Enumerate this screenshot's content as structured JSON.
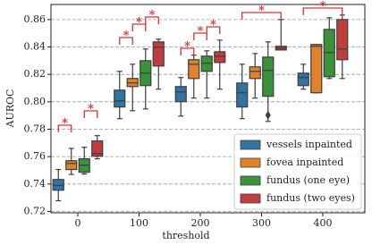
{
  "chart_data": {
    "type": "box",
    "xlabel": "threshold",
    "ylabel": "AUROC",
    "categories": [
      "0",
      "100",
      "200",
      "300",
      "400"
    ],
    "ylim": [
      0.719,
      0.871
    ],
    "yticks": [
      0.72,
      0.74,
      0.76,
      0.78,
      {
        "value": 0.8,
        "label": "0.80"
      },
      0.82,
      0.84,
      0.86
    ],
    "grid": true,
    "legend": "lower right",
    "series": [
      {
        "name": "vessels inpainted",
        "color": "#3274a1",
        "boxes": [
          {
            "low": 0.7278,
            "q1": 0.7355,
            "median": 0.739,
            "q3": 0.7433,
            "high": 0.7506
          },
          {
            "low": 0.7877,
            "q1": 0.7962,
            "median": 0.8007,
            "q3": 0.8085,
            "high": 0.8222
          },
          {
            "low": 0.7896,
            "q1": 0.8001,
            "median": 0.8072,
            "q3": 0.8111,
            "high": 0.8177
          },
          {
            "low": 0.7877,
            "q1": 0.7962,
            "median": 0.8066,
            "q3": 0.8137,
            "high": 0.8274
          },
          {
            "low": 0.8092,
            "q1": 0.8118,
            "median": 0.8177,
            "q3": 0.8209,
            "high": 0.8274
          }
        ]
      },
      {
        "name": "fovea inpainted",
        "color": "#e1812c",
        "boxes": [
          {
            "low": 0.747,
            "q1": 0.7506,
            "median": 0.755,
            "q3": 0.757,
            "high": 0.766
          },
          {
            "low": 0.7935,
            "q1": 0.8111,
            "median": 0.8138,
            "q3": 0.817,
            "high": 0.8274
          },
          {
            "low": 0.8027,
            "q1": 0.817,
            "median": 0.8274,
            "q3": 0.8307,
            "high": 0.834
          },
          {
            "low": 0.8027,
            "q1": 0.817,
            "median": 0.8222,
            "q3": 0.8255,
            "high": 0.8352
          },
          {
            "low": 0.8066,
            "q1": 0.8066,
            "median": 0.8405,
            "q3": 0.8418,
            "high": 0.8418
          }
        ]
      },
      {
        "name": "fundus (one eye)",
        "color": "#3a923a",
        "boxes": [
          {
            "low": 0.7473,
            "q1": 0.7486,
            "median": 0.7538,
            "q3": 0.7584,
            "high": 0.7668
          },
          {
            "low": 0.7948,
            "q1": 0.8118,
            "median": 0.8209,
            "q3": 0.83,
            "high": 0.8385
          },
          {
            "low": 0.8027,
            "q1": 0.8222,
            "median": 0.8281,
            "q3": 0.8333,
            "high": 0.8372
          },
          {
            "low": 0.7857,
            "q1": 0.804,
            "median": 0.8229,
            "q3": 0.8326,
            "high": 0.8437
          },
          {
            "low": 0.817,
            "q1": 0.8183,
            "median": 0.8359,
            "q3": 0.8528,
            "high": 0.8613
          }
        ],
        "outliers": [
          [],
          [],
          [],
          [
            0.7903
          ],
          []
        ]
      },
      {
        "name": "fundus (two eyes)",
        "color": "#c03d3e",
        "boxes": [
          {
            "low": 0.7584,
            "q1": 0.7603,
            "median": 0.7623,
            "q3": 0.7714,
            "high": 0.7753
          },
          {
            "low": 0.8092,
            "q1": 0.8261,
            "median": 0.8398,
            "q3": 0.8437,
            "high": 0.8457
          },
          {
            "low": 0.8092,
            "q1": 0.8287,
            "median": 0.8333,
            "q3": 0.8365,
            "high": 0.845
          },
          {
            "low": 0.8378,
            "q1": 0.8378,
            "median": 0.8392,
            "q3": 0.8405,
            "high": 0.86
          },
          {
            "low": 0.817,
            "q1": 0.8307,
            "median": 0.8385,
            "q3": 0.86,
            "high": 0.8633
          }
        ]
      }
    ],
    "annotations": [
      "*",
      "*",
      "*",
      "*",
      "*",
      "*",
      "*",
      "*",
      "*",
      "*"
    ]
  }
}
